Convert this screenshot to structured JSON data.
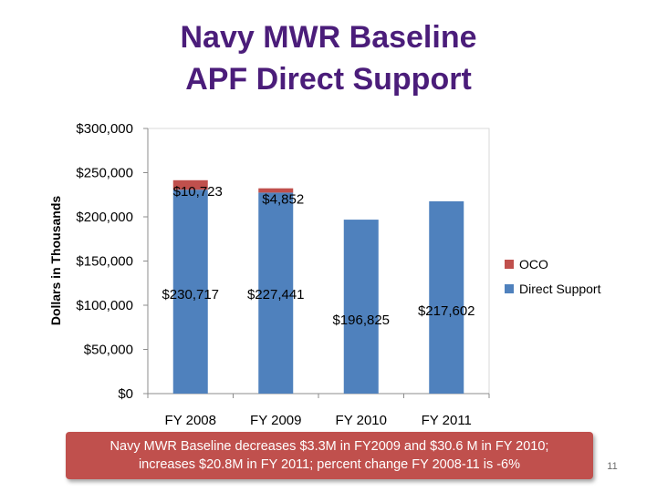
{
  "slide": {
    "title_line1": "Navy MWR Baseline",
    "title_line2": "APF Direct Support",
    "caption_line1": "Navy MWR Baseline decreases $3.3M in FY2009 and $30.6 M in FY 2010;",
    "caption_line2": "increases $20.8M in FY 2011; percent change FY 2008-11 is -6%",
    "page_number": "11"
  },
  "colors": {
    "title": "#4b1d7a",
    "oco": "#c0504d",
    "direct_support": "#4f81bd",
    "caption_bg": "#c0504d"
  },
  "chart_data": {
    "type": "bar",
    "stacked": true,
    "categories": [
      "FY 2008",
      "FY 2009",
      "FY 2010",
      "FY 2011"
    ],
    "series": [
      {
        "name": "Direct Support",
        "color": "#4f81bd",
        "values": [
          230717,
          227441,
          196825,
          217602
        ],
        "labels": [
          "$230,717",
          "$227,441",
          "$196,825",
          "$217,602"
        ]
      },
      {
        "name": "OCO",
        "color": "#c0504d",
        "values": [
          10723,
          4852,
          null,
          null
        ],
        "labels": [
          "$10,723",
          "$4,852",
          "",
          ""
        ]
      }
    ],
    "ylabel": "Dollars in Thousands",
    "ylim": [
      0,
      300000
    ],
    "yticks": [
      0,
      50000,
      100000,
      150000,
      200000,
      250000,
      300000
    ],
    "ytick_labels": [
      "$0",
      "$50,000",
      "$100,000",
      "$150,000",
      "$200,000",
      "$250,000",
      "$300,000"
    ],
    "legend": [
      "OCO",
      "Direct Support"
    ],
    "legend_position": "right",
    "grid": false
  }
}
